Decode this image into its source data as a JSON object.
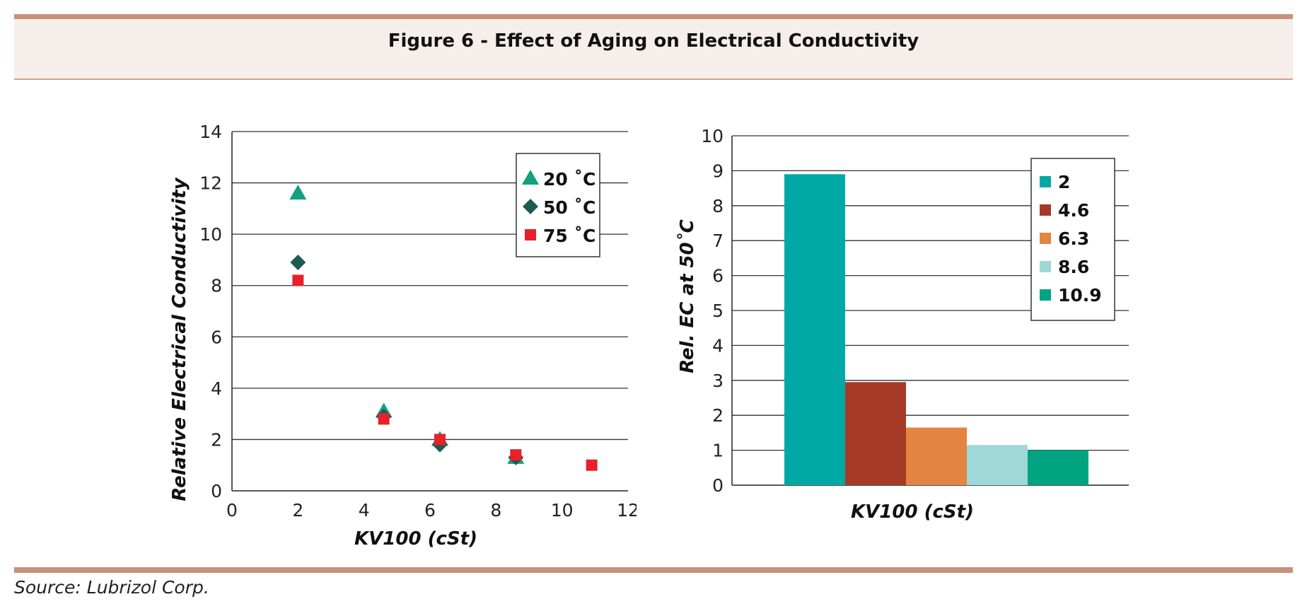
{
  "figure": {
    "title": "Figure 6 - Effect of Aging on Electrical Conductivity",
    "source": "Source: Lubrizol Corp."
  },
  "colors": {
    "header_bar": "#c8917a",
    "header_bg": "#f5eeea"
  },
  "chart_data": [
    {
      "type": "scatter",
      "xlabel": "KV100 (cSt)",
      "ylabel": "Relative Electrical Conductivity",
      "xlim": [
        0,
        12
      ],
      "ylim": [
        0,
        14
      ],
      "xticks": [
        0,
        2,
        4,
        6,
        8,
        10,
        12
      ],
      "yticks": [
        0,
        2,
        4,
        6,
        8,
        10,
        12,
        14
      ],
      "grid": "horizontal",
      "legend_position": "top-right",
      "series": [
        {
          "name": "20 ˚C",
          "marker": "triangle",
          "color": "#12a07f",
          "points": [
            [
              2,
              11.6
            ],
            [
              4.6,
              3.1
            ],
            [
              6.3,
              2.0
            ],
            [
              8.6,
              1.3
            ]
          ]
        },
        {
          "name": "50 ˚C",
          "marker": "diamond",
          "color": "#1d5a52",
          "points": [
            [
              2,
              8.9
            ],
            [
              4.6,
              2.9
            ],
            [
              6.3,
              1.8
            ],
            [
              8.6,
              1.3
            ]
          ]
        },
        {
          "name": "75 ˚C",
          "marker": "square",
          "color": "#e8202a",
          "points": [
            [
              2,
              8.2
            ],
            [
              4.6,
              2.8
            ],
            [
              6.3,
              2.0
            ],
            [
              8.6,
              1.4
            ],
            [
              10.9,
              1.0
            ]
          ]
        }
      ]
    },
    {
      "type": "bar",
      "xlabel": "KV100 (cSt)",
      "ylabel": "Rel. EC at 50˚C",
      "ylim": [
        0,
        10
      ],
      "yticks": [
        0,
        1,
        2,
        3,
        4,
        5,
        6,
        7,
        8,
        9,
        10
      ],
      "grid": "horizontal",
      "legend_position": "top-right",
      "series": [
        {
          "name": "2",
          "value": 8.9,
          "color": "#00a9a6"
        },
        {
          "name": "4.6",
          "value": 2.95,
          "color": "#a63a26"
        },
        {
          "name": "6.3",
          "value": 1.65,
          "color": "#e48442"
        },
        {
          "name": "8.6",
          "value": 1.15,
          "color": "#9fd8d8"
        },
        {
          "name": "10.9",
          "value": 1.0,
          "color": "#00a481"
        }
      ]
    }
  ]
}
